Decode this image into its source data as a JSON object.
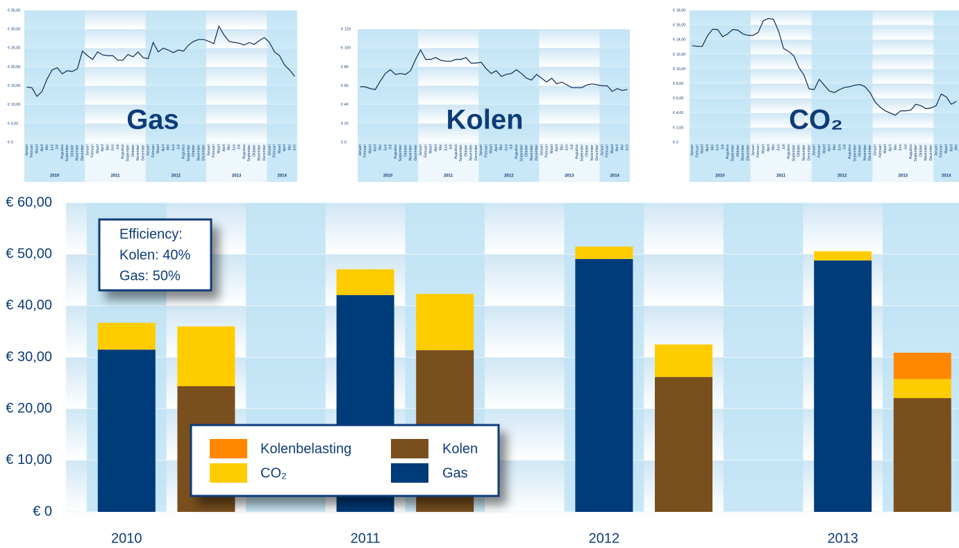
{
  "chart_data": [
    {
      "type": "line",
      "title": "Gas",
      "color": "#0b2a55",
      "categories": [
        "Januari",
        "Februari",
        "Maart",
        "April",
        "Mei",
        "Juni",
        "Juli",
        "Augustus",
        "September",
        "Oktober",
        "November",
        "December",
        "Januari",
        "Februari",
        "Maart",
        "April",
        "Mei",
        "Juni",
        "Juli",
        "Augustus",
        "September",
        "Oktober",
        "November",
        "December",
        "Januari",
        "Februari",
        "Maart",
        "April",
        "Mei",
        "Juni",
        "Juli",
        "Augustus",
        "September",
        "Oktober",
        "November",
        "December",
        "Januari",
        "Februari",
        "Maart",
        "April",
        "Mei",
        "Juni",
        "Juli",
        "Augustus",
        "September",
        "Oktober",
        "November",
        "December",
        "Januari",
        "Februari",
        "Maart",
        "April",
        "Mei",
        "Juni"
      ],
      "years": [
        "2010",
        "2011",
        "2012",
        "2013",
        "2014"
      ],
      "values": [
        14.7,
        14.5,
        12.2,
        13.5,
        16.8,
        19.2,
        19.8,
        18.2,
        19.0,
        18.8,
        19.5,
        24.2,
        23.0,
        22.0,
        24.0,
        23.2,
        23.0,
        23.0,
        21.8,
        21.8,
        23.3,
        22.7,
        24.0,
        22.5,
        22.2,
        26.5,
        24.0,
        25.0,
        24.5,
        23.8,
        24.5,
        24.2,
        25.8,
        26.8,
        27.3,
        27.3,
        26.8,
        26.2,
        30.8,
        28.5,
        26.8,
        26.5,
        26.3,
        25.8,
        26.5,
        26.0,
        27.0,
        27.8,
        26.5,
        24.0,
        23.0,
        20.5,
        19.2,
        17.5
      ],
      "ylim": [
        0,
        35
      ],
      "yticks": [
        {
          "value": 0,
          "label": "€ 0"
        },
        {
          "value": 5,
          "label": "€ 5,00"
        },
        {
          "value": 10,
          "label": "€ 10,00"
        },
        {
          "value": 15,
          "label": "€ 15,00"
        },
        {
          "value": 20,
          "label": "€ 20,00"
        },
        {
          "value": 25,
          "label": "€ 25,00"
        },
        {
          "value": 30,
          "label": "€ 30,00"
        },
        {
          "value": 35,
          "label": "€ 35,00"
        }
      ]
    },
    {
      "type": "line",
      "title": "Kolen",
      "color": "#0b2a55",
      "categories": [
        "Januari",
        "Februari",
        "Maart",
        "April",
        "Mei",
        "Juni",
        "Juli",
        "Augustus",
        "September",
        "Oktober",
        "November",
        "December",
        "Januari",
        "Februari",
        "Maart",
        "April",
        "Mei",
        "Juni",
        "Juli",
        "Augustus",
        "September",
        "Oktober",
        "November",
        "December",
        "Januari",
        "Februari",
        "Maart",
        "April",
        "Mei",
        "Juni",
        "Juli",
        "Augustus",
        "September",
        "Oktober",
        "November",
        "December",
        "Januari",
        "Februari",
        "Maart",
        "April",
        "Mei",
        "Juni",
        "Juli",
        "Augustus",
        "September",
        "Oktober",
        "November",
        "December",
        "Januari",
        "Februari",
        "Maart",
        "April",
        "Mei",
        "Juni"
      ],
      "years": [
        "2010",
        "2011",
        "2012",
        "2013",
        "2014"
      ],
      "values": [
        59,
        59,
        57,
        56,
        65,
        73,
        77,
        72,
        73,
        72,
        76,
        88,
        98,
        88,
        88,
        90,
        87,
        86,
        86,
        88,
        88,
        90,
        84,
        84,
        85,
        78,
        73,
        76,
        70,
        72,
        73,
        77,
        73,
        68,
        66,
        72,
        68,
        64,
        68,
        62,
        64,
        61,
        58,
        58,
        58,
        61,
        62,
        61,
        60,
        60,
        54,
        57,
        55,
        56
      ],
      "ylim": [
        0,
        120
      ],
      "yticks": [
        {
          "value": 0,
          "label": "€ 0"
        },
        {
          "value": 20,
          "label": "€ 20"
        },
        {
          "value": 40,
          "label": "€ 40"
        },
        {
          "value": 60,
          "label": "€ 60"
        },
        {
          "value": 80,
          "label": "€ 80"
        },
        {
          "value": 100,
          "label": "€ 100"
        },
        {
          "value": 120,
          "label": "€ 120"
        }
      ]
    },
    {
      "type": "line",
      "title": "CO₂",
      "color": "#0b2a55",
      "categories": [
        "Januari",
        "Februari",
        "Maart",
        "April",
        "Mei",
        "Juni",
        "Juli",
        "Augustus",
        "September",
        "Oktober",
        "November",
        "December",
        "Januari",
        "Februari",
        "Maart",
        "April",
        "Mei",
        "Juni",
        "Juli",
        "Augustus",
        "September",
        "Oktober",
        "November",
        "December",
        "Januari",
        "Februari",
        "Maart",
        "April",
        "Mei",
        "Juni",
        "Juli",
        "Augustus",
        "September",
        "Oktober",
        "November",
        "December",
        "Januari",
        "Februari",
        "Maart",
        "April",
        "Mei",
        "Juni",
        "Juli",
        "Augustus",
        "September",
        "Oktober",
        "November",
        "December",
        "Januari",
        "Februari",
        "Maart",
        "April",
        "Mei"
      ],
      "years": [
        "2010",
        "2011",
        "2012",
        "2013",
        "2014"
      ],
      "values": [
        13.2,
        13.1,
        13.1,
        14.5,
        15.4,
        15.4,
        14.4,
        14.8,
        15.4,
        15.3,
        14.8,
        14.6,
        14.6,
        15.0,
        16.6,
        16.9,
        16.8,
        15.2,
        12.8,
        12.4,
        11.8,
        10.2,
        9.2,
        7.3,
        7.2,
        8.6,
        7.8,
        7.0,
        6.8,
        7.2,
        7.5,
        7.6,
        7.8,
        7.9,
        7.6,
        6.8,
        5.5,
        4.8,
        4.3,
        4.0,
        3.7,
        4.3,
        4.3,
        4.4,
        5.2,
        5.0,
        4.6,
        4.7,
        5.0,
        6.6,
        6.2,
        5.2,
        5.6
      ],
      "ylim": [
        0,
        18
      ],
      "yticks": [
        {
          "value": 0,
          "label": "€ 0"
        },
        {
          "value": 2,
          "label": "€ 2,00"
        },
        {
          "value": 4,
          "label": "€ 4,00"
        },
        {
          "value": 6,
          "label": "€ 6,00"
        },
        {
          "value": 8,
          "label": "€ 8,00"
        },
        {
          "value": 10,
          "label": "€ 10,00"
        },
        {
          "value": 12,
          "label": "€ 12,00"
        },
        {
          "value": 14,
          "label": "€ 14,00"
        },
        {
          "value": 16,
          "label": "€ 16,00"
        },
        {
          "value": 18,
          "label": "€ 18,00"
        }
      ]
    },
    {
      "type": "bar",
      "categories": [
        "2010",
        null,
        "2011",
        null,
        "2012",
        null,
        "2013",
        null
      ],
      "series": [
        {
          "name": "Gas",
          "color": "#003b7a",
          "values": [
            31.5,
            null,
            42.1,
            null,
            49.1,
            null,
            48.8,
            null
          ]
        },
        {
          "name": "Kolen",
          "color": "#7a4f1e",
          "values": [
            null,
            24.4,
            null,
            31.4,
            null,
            26.2,
            null,
            22.1
          ]
        },
        {
          "name": "CO₂",
          "color": "#ffcc00",
          "values": [
            5.2,
            11.6,
            5.0,
            10.9,
            2.4,
            6.3,
            1.8,
            3.7
          ]
        },
        {
          "name": "Kolenbelasting",
          "color": "#ff8800",
          "values": [
            null,
            null,
            null,
            null,
            null,
            null,
            null,
            5.1
          ]
        }
      ],
      "annotation": [
        "Efficiency:",
        "Kolen: 40%",
        "Gas: 50%"
      ],
      "ylim": [
        0,
        60
      ],
      "yticks": [
        {
          "value": 0,
          "label": "€ 0"
        },
        {
          "value": 10,
          "label": "€ 10,00"
        },
        {
          "value": 20,
          "label": "€ 20,00"
        },
        {
          "value": 30,
          "label": "€ 30,00"
        },
        {
          "value": 40,
          "label": "€ 40,00"
        },
        {
          "value": 50,
          "label": "€ 50,00"
        },
        {
          "value": 60,
          "label": "€ 60,00"
        }
      ]
    }
  ]
}
